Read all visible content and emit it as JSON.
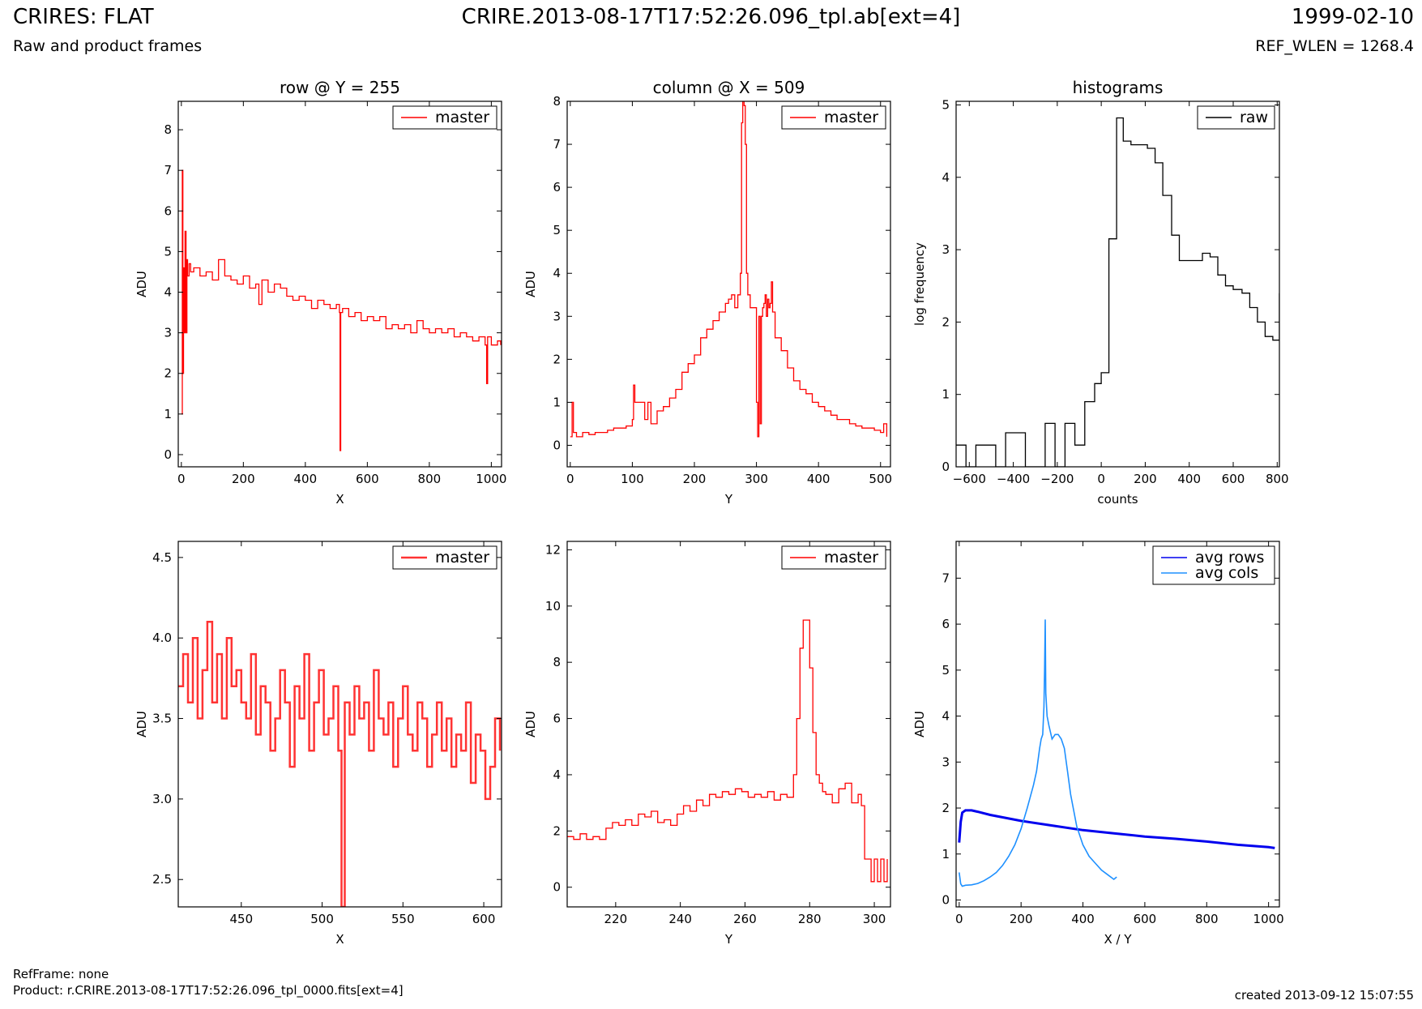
{
  "header": {
    "left_title": "CRIRES: FLAT",
    "left_subtitle": "Raw and product frames",
    "center_title": "CRIRE.2013-08-17T17:52:26.096_tpl.ab[ext=4]",
    "right_date": "1999-02-10",
    "right_subtitle": "REF_WLEN = 1268.4"
  },
  "footer": {
    "refframe": "RefFrame: none",
    "product": "Product: r.CRIRE.2013-08-17T17:52:26.096_tpl_0000.fits[ext=4]",
    "created": "created 2013-09-12 15:07:55"
  },
  "colors": {
    "master": "#ff0000",
    "master_zoom": "#ff3333",
    "raw": "#000000",
    "avg_rows": "#0000ee",
    "avg_cols": "#1e90ff"
  },
  "chart_data": [
    {
      "id": "row",
      "type": "line",
      "title": "row @ Y = 255",
      "xlabel": "X",
      "ylabel": "ADU",
      "xlim": [
        -10,
        1033
      ],
      "ylim": [
        -0.3,
        8.7
      ],
      "xticks": [
        0,
        200,
        400,
        600,
        800,
        1000
      ],
      "yticks": [
        0,
        1,
        2,
        3,
        4,
        5,
        6,
        7,
        8
      ],
      "legend_position": "top-right",
      "series": [
        {
          "name": "master",
          "color": "#ff0000",
          "step": true,
          "x": [
            0,
            3,
            5,
            7,
            9,
            12,
            15,
            18,
            20,
            25,
            30,
            40,
            60,
            80,
            100,
            120,
            140,
            160,
            180,
            200,
            220,
            240,
            250,
            260,
            280,
            300,
            320,
            340,
            360,
            380,
            400,
            420,
            440,
            460,
            480,
            500,
            510,
            512,
            514,
            520,
            540,
            560,
            580,
            600,
            620,
            640,
            660,
            680,
            700,
            720,
            740,
            760,
            780,
            800,
            820,
            840,
            860,
            880,
            900,
            920,
            940,
            960,
            980,
            985,
            988,
            1000,
            1020,
            1030
          ],
          "y": [
            1.0,
            7.0,
            2.0,
            4.6,
            3.0,
            5.5,
            3.0,
            4.8,
            4.4,
            4.7,
            4.5,
            4.6,
            4.4,
            4.5,
            4.3,
            4.8,
            4.4,
            4.3,
            4.2,
            4.4,
            4.1,
            4.2,
            3.7,
            4.3,
            4.0,
            4.2,
            4.1,
            3.9,
            3.8,
            3.9,
            3.8,
            3.6,
            3.8,
            3.7,
            3.6,
            3.7,
            3.5,
            0.1,
            3.5,
            3.6,
            3.4,
            3.5,
            3.3,
            3.4,
            3.3,
            3.4,
            3.1,
            3.2,
            3.1,
            3.2,
            3.0,
            3.3,
            3.1,
            3.0,
            3.1,
            3.0,
            3.1,
            2.9,
            3.0,
            2.9,
            2.8,
            2.9,
            2.7,
            1.75,
            2.9,
            2.7,
            2.8,
            2.7
          ]
        }
      ]
    },
    {
      "id": "column",
      "type": "line",
      "title": "column @ X = 509",
      "xlabel": "Y",
      "ylabel": "ADU",
      "xlim": [
        -5,
        516
      ],
      "ylim": [
        -0.5,
        8
      ],
      "xticks": [
        0,
        100,
        200,
        300,
        400,
        500
      ],
      "yticks": [
        0,
        1,
        2,
        3,
        4,
        5,
        6,
        7,
        8
      ],
      "legend_position": "top-right",
      "series": [
        {
          "name": "master",
          "color": "#ff0000",
          "step": true,
          "x": [
            0,
            3,
            5,
            10,
            20,
            30,
            40,
            50,
            60,
            70,
            80,
            90,
            100,
            102,
            104,
            108,
            115,
            120,
            125,
            130,
            140,
            150,
            160,
            170,
            180,
            190,
            200,
            210,
            220,
            230,
            240,
            250,
            255,
            260,
            265,
            270,
            272,
            274,
            276,
            278,
            280,
            282,
            284,
            286,
            290,
            295,
            300,
            302,
            304,
            306,
            308,
            310,
            312,
            314,
            316,
            318,
            320,
            322,
            324,
            326,
            330,
            340,
            350,
            360,
            370,
            380,
            390,
            400,
            410,
            420,
            430,
            440,
            450,
            460,
            470,
            480,
            490,
            500,
            505,
            510
          ],
          "y": [
            0.2,
            1.0,
            0.3,
            0.2,
            0.3,
            0.25,
            0.3,
            0.3,
            0.35,
            0.4,
            0.4,
            0.45,
            0.6,
            1.4,
            1.0,
            1.0,
            1.0,
            0.6,
            1.0,
            0.5,
            0.8,
            0.9,
            1.1,
            1.3,
            1.7,
            1.9,
            2.1,
            2.5,
            2.7,
            2.9,
            3.1,
            3.3,
            3.4,
            3.5,
            3.2,
            3.5,
            3.5,
            4.0,
            7.5,
            8.0,
            7.9,
            7.0,
            4.0,
            3.5,
            3.2,
            3.2,
            1.0,
            0.2,
            3.0,
            0.5,
            3.0,
            3.2,
            3.3,
            3.5,
            3.0,
            3.4,
            3.2,
            3.3,
            3.8,
            3.1,
            2.5,
            2.2,
            1.8,
            1.5,
            1.3,
            1.2,
            1.0,
            0.9,
            0.8,
            0.7,
            0.6,
            0.6,
            0.5,
            0.45,
            0.4,
            0.4,
            0.35,
            0.3,
            0.5,
            0.2
          ]
        }
      ]
    },
    {
      "id": "histograms",
      "type": "line",
      "title": "histograms",
      "xlabel": "counts",
      "ylabel": "log frequency",
      "xlim": [
        -660,
        810
      ],
      "ylim": [
        0,
        5.05
      ],
      "xticks": [
        -600,
        -400,
        -200,
        0,
        200,
        400,
        600,
        800
      ],
      "xtick_labels": [
        "−600",
        "−400",
        "−200",
        "0",
        "200",
        "400",
        "600",
        "800"
      ],
      "yticks": [
        0,
        1,
        2,
        3,
        4,
        5
      ],
      "legend_position": "top-right",
      "series": [
        {
          "name": "raw",
          "color": "#000000",
          "step": true,
          "x": [
            -660,
            -615,
            -570,
            -525,
            -480,
            -435,
            -390,
            -345,
            -300,
            -255,
            -210,
            -165,
            -120,
            -75,
            -30,
            0,
            35,
            70,
            100,
            135,
            170,
            210,
            245,
            280,
            320,
            355,
            390,
            420,
            460,
            495,
            530,
            565,
            600,
            640,
            675,
            710,
            745,
            780,
            810
          ],
          "y": [
            0.3,
            0.0,
            0.3,
            0.3,
            0.0,
            0.47,
            0.47,
            0.0,
            0.0,
            0.6,
            0.0,
            0.6,
            0.3,
            0.9,
            1.15,
            1.3,
            3.15,
            4.82,
            4.5,
            4.45,
            4.45,
            4.4,
            4.2,
            3.75,
            3.2,
            2.85,
            2.85,
            2.85,
            2.95,
            2.9,
            2.65,
            2.5,
            2.45,
            2.4,
            2.2,
            2.0,
            1.8,
            1.75,
            2.4
          ]
        }
      ]
    },
    {
      "id": "row_zoom",
      "type": "line",
      "title": "",
      "xlabel": "X",
      "ylabel": "ADU",
      "xlim": [
        411,
        611
      ],
      "ylim": [
        2.33,
        4.6
      ],
      "xticks": [
        450,
        500,
        550,
        600
      ],
      "yticks": [
        2.5,
        3.0,
        3.5,
        4.0,
        4.5
      ],
      "ytick_labels": [
        "2.5",
        "3.0",
        "3.5",
        "4.0",
        "4.5"
      ],
      "legend_position": "top-right",
      "series": [
        {
          "name": "master",
          "color": "#ff3333",
          "step": true,
          "x": [
            411,
            414,
            417,
            420,
            423,
            426,
            429,
            432,
            435,
            438,
            441,
            444,
            447,
            450,
            453,
            456,
            459,
            462,
            465,
            468,
            471,
            474,
            477,
            480,
            483,
            486,
            489,
            492,
            495,
            498,
            501,
            504,
            507,
            510,
            512,
            514,
            517,
            520,
            523,
            526,
            529,
            532,
            535,
            538,
            541,
            544,
            547,
            550,
            553,
            556,
            559,
            562,
            565,
            568,
            571,
            574,
            577,
            580,
            583,
            586,
            589,
            592,
            595,
            598,
            601,
            604,
            607,
            610
          ],
          "y": [
            3.7,
            3.9,
            3.6,
            4.0,
            3.5,
            3.8,
            4.1,
            3.6,
            3.9,
            3.5,
            4.0,
            3.7,
            3.8,
            3.6,
            3.5,
            3.9,
            3.4,
            3.7,
            3.6,
            3.3,
            3.5,
            3.8,
            3.6,
            3.2,
            3.7,
            3.5,
            3.9,
            3.3,
            3.6,
            3.8,
            3.4,
            3.5,
            3.7,
            3.3,
            2.33,
            3.6,
            3.4,
            3.7,
            3.5,
            3.6,
            3.3,
            3.8,
            3.5,
            3.4,
            3.6,
            3.2,
            3.5,
            3.7,
            3.4,
            3.3,
            3.6,
            3.5,
            3.2,
            3.4,
            3.6,
            3.3,
            3.5,
            3.2,
            3.4,
            3.3,
            3.6,
            3.1,
            3.4,
            3.3,
            3.0,
            3.2,
            3.5,
            3.3
          ]
        }
      ]
    },
    {
      "id": "column_zoom",
      "type": "line",
      "title": "",
      "xlabel": "Y",
      "ylabel": "ADU",
      "xlim": [
        205,
        305
      ],
      "ylim": [
        -0.7,
        12.3
      ],
      "xticks": [
        220,
        240,
        260,
        280,
        300
      ],
      "yticks": [
        0,
        2,
        4,
        6,
        8,
        10,
        12
      ],
      "legend_position": "top-right",
      "series": [
        {
          "name": "master",
          "color": "#ff0000",
          "step": true,
          "x": [
            205,
            207,
            209,
            211,
            213,
            215,
            217,
            219,
            221,
            223,
            225,
            227,
            229,
            231,
            233,
            235,
            237,
            239,
            241,
            243,
            245,
            247,
            249,
            251,
            253,
            255,
            257,
            259,
            261,
            263,
            265,
            267,
            269,
            271,
            273,
            275,
            276,
            277,
            278,
            279,
            280,
            281,
            282,
            283,
            284,
            285,
            287,
            289,
            291,
            293,
            295,
            296,
            297,
            298,
            299,
            300,
            301,
            302,
            303,
            304
          ],
          "y": [
            1.8,
            1.7,
            1.9,
            1.7,
            1.8,
            1.7,
            2.1,
            2.3,
            2.2,
            2.4,
            2.2,
            2.6,
            2.5,
            2.7,
            2.3,
            2.4,
            2.2,
            2.6,
            2.9,
            2.7,
            3.1,
            2.9,
            3.3,
            3.2,
            3.4,
            3.3,
            3.5,
            3.4,
            3.2,
            3.3,
            3.2,
            3.4,
            3.1,
            3.3,
            3.2,
            4.0,
            6.0,
            8.5,
            9.5,
            9.5,
            7.8,
            5.5,
            4.0,
            3.7,
            3.4,
            3.3,
            3.0,
            3.5,
            3.7,
            3.0,
            3.3,
            2.9,
            1.0,
            1.0,
            0.2,
            1.0,
            0.2,
            1.0,
            0.2,
            1.0
          ]
        }
      ]
    },
    {
      "id": "averages",
      "type": "line",
      "title": "",
      "xlabel": "X / Y",
      "ylabel": "ADU",
      "xlim": [
        -10,
        1035
      ],
      "ylim": [
        -0.15,
        7.8
      ],
      "xticks": [
        0,
        200,
        400,
        600,
        800,
        1000
      ],
      "yticks": [
        0,
        1,
        2,
        3,
        4,
        5,
        6,
        7
      ],
      "legend_position": "top-right",
      "series": [
        {
          "name": "avg rows",
          "color": "#0000ee",
          "width": 3,
          "x": [
            0,
            5,
            10,
            20,
            40,
            60,
            100,
            200,
            300,
            400,
            500,
            600,
            700,
            800,
            900,
            1000,
            1020
          ],
          "y": [
            1.25,
            1.7,
            1.9,
            1.95,
            1.95,
            1.92,
            1.85,
            1.72,
            1.62,
            1.52,
            1.45,
            1.38,
            1.33,
            1.27,
            1.2,
            1.15,
            1.13
          ]
        },
        {
          "name": "avg cols",
          "color": "#1e90ff",
          "width": 1.6,
          "x": [
            0,
            5,
            10,
            20,
            40,
            60,
            80,
            100,
            120,
            140,
            160,
            180,
            200,
            220,
            240,
            250,
            260,
            265,
            270,
            274,
            276,
            278,
            280,
            284,
            290,
            300,
            310,
            320,
            330,
            340,
            350,
            360,
            380,
            400,
            420,
            440,
            460,
            480,
            500,
            509
          ],
          "y": [
            0.6,
            0.35,
            0.3,
            0.32,
            0.33,
            0.36,
            0.42,
            0.5,
            0.6,
            0.75,
            0.95,
            1.2,
            1.55,
            2.0,
            2.5,
            2.8,
            3.3,
            3.5,
            3.6,
            4.2,
            5.0,
            6.1,
            4.5,
            4.0,
            3.8,
            3.5,
            3.6,
            3.6,
            3.5,
            3.3,
            2.8,
            2.3,
            1.6,
            1.2,
            0.95,
            0.8,
            0.65,
            0.55,
            0.45,
            0.5
          ]
        }
      ]
    }
  ]
}
